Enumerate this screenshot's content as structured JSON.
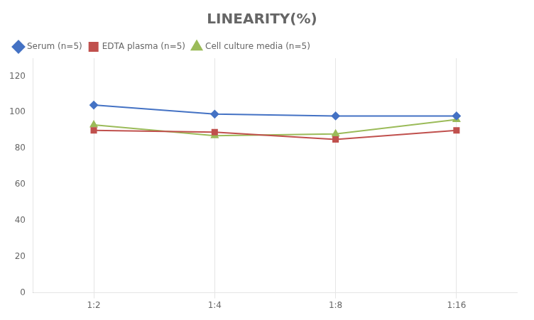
{
  "chart_data": {
    "type": "line",
    "title": "LINEARITY(%)",
    "categories": [
      "1:2",
      "1:4",
      "1:8",
      "1:16"
    ],
    "series": [
      {
        "name": "Serum (n=5)",
        "color": "#4472C4",
        "marker": "diamond",
        "values": [
          104,
          99,
          98,
          98
        ]
      },
      {
        "name": "EDTA plasma (n=5)",
        "color": "#C0504D",
        "marker": "square",
        "values": [
          90,
          89,
          85,
          90
        ]
      },
      {
        "name": "Cell culture media (n=5)",
        "color": "#9BBB59",
        "marker": "triangle",
        "values": [
          93,
          87,
          88,
          96
        ]
      }
    ],
    "ylim": [
      0,
      130
    ],
    "yticks": [
      0,
      20,
      40,
      60,
      80,
      100,
      120
    ],
    "grid": "x",
    "legend": "upper left"
  }
}
